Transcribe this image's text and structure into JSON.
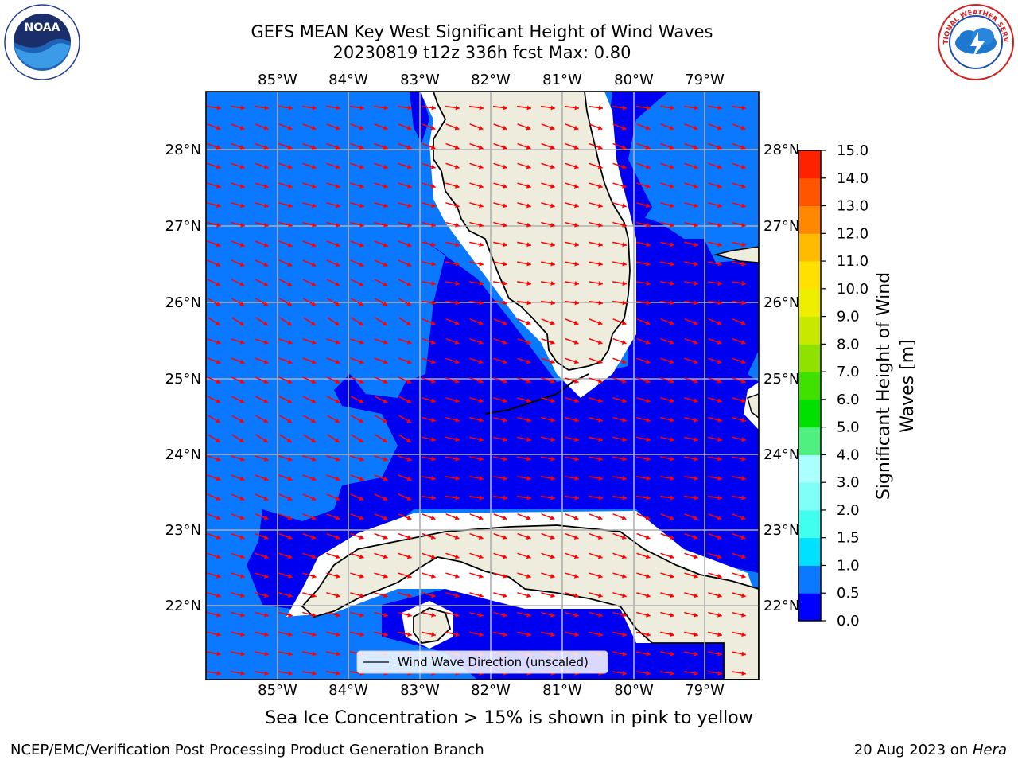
{
  "title_line1": "GEFS MEAN Key West Significant Height of Wind Waves",
  "title_line2": "20230819 t12z 336h fcst   Max: 0.80",
  "lon_labels": [
    "85°W",
    "84°W",
    "83°W",
    "82°W",
    "81°W",
    "80°W",
    "79°W"
  ],
  "lat_labels": [
    "28°N",
    "27°N",
    "26°N",
    "25°N",
    "24°N",
    "23°N",
    "22°N"
  ],
  "legend_label": "Wind Wave Direction (unscaled)",
  "colorbar": {
    "label_line1": "Significant Height of Wind",
    "label_line2": "Waves [m]",
    "ticks": [
      "0.0",
      "0.5",
      "1.0",
      "1.5",
      "2.0",
      "3.0",
      "4.0",
      "5.0",
      "6.0",
      "7.0",
      "8.0",
      "9.0",
      "10.0",
      "11.0",
      "12.0",
      "13.0",
      "14.0",
      "15.0"
    ],
    "colors": [
      "#0000ff",
      "#0a78ff",
      "#00e0ff",
      "#40ffee",
      "#80fff8",
      "#aaffff",
      "#50f080",
      "#00e000",
      "#40e000",
      "#90e000",
      "#c8e800",
      "#eeee00",
      "#ffe000",
      "#ffbb00",
      "#ff8800",
      "#ff5500",
      "#ff2200",
      "#ff0000"
    ]
  },
  "ice_note": "Sea Ice Concentration > 15% is shown in pink to yellow",
  "footer_left": "NCEP/EMC/Verification Post Processing Product Generation Branch",
  "footer_date": "20 Aug 2023 on ",
  "footer_machine": "Hera",
  "noaa_logo_text": "NOAA",
  "nws_logo_text": "NATIONAL WEATHER SERVICE",
  "colors": {
    "land": "#eeecdc",
    "shelf_water": "#0a78ff",
    "deep_water": "#0000f0",
    "coast_gap": "#ffffff",
    "grid": "#b0b0b0",
    "arrow": "#ff0000"
  }
}
